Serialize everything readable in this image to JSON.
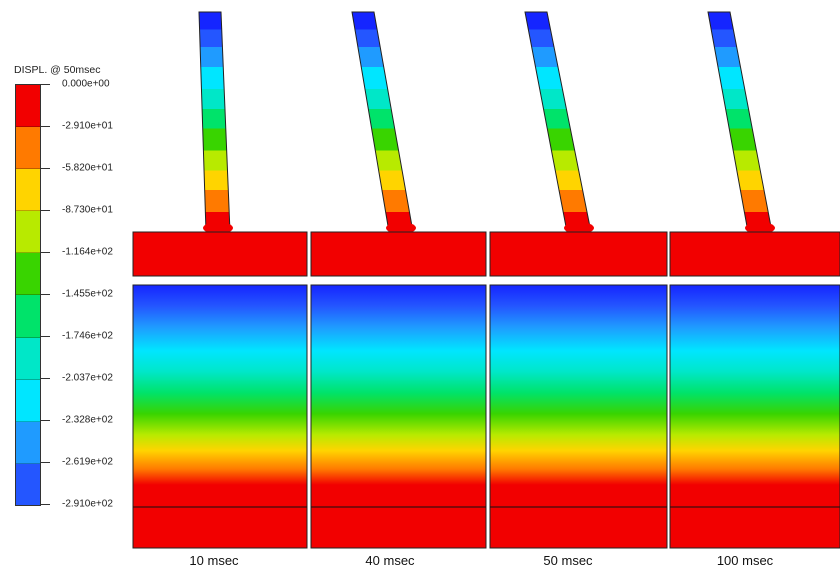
{
  "legend": {
    "title": "DISPL. @ 50msec",
    "colors": [
      "#f20000",
      "#ff7a00",
      "#ffd400",
      "#b8ea00",
      "#39d400",
      "#00e36a",
      "#00e7c8",
      "#00e6ff",
      "#1f9bff",
      "#2456ff",
      "#1525ff"
    ],
    "labels": [
      "0.000e+00",
      "-2.910e+01",
      "-5.820e+01",
      "-8.730e+01",
      "-1.164e+02",
      "-1.455e+02",
      "-1.746e+02",
      "-2.037e+02",
      "-2.328e+02",
      "-2.619e+02",
      "-2.910e+02"
    ]
  },
  "panels": [
    {
      "time_label": "10 msec"
    },
    {
      "time_label": "40 msec"
    },
    {
      "time_label": "50 msec"
    },
    {
      "time_label": "100 msec"
    }
  ]
}
